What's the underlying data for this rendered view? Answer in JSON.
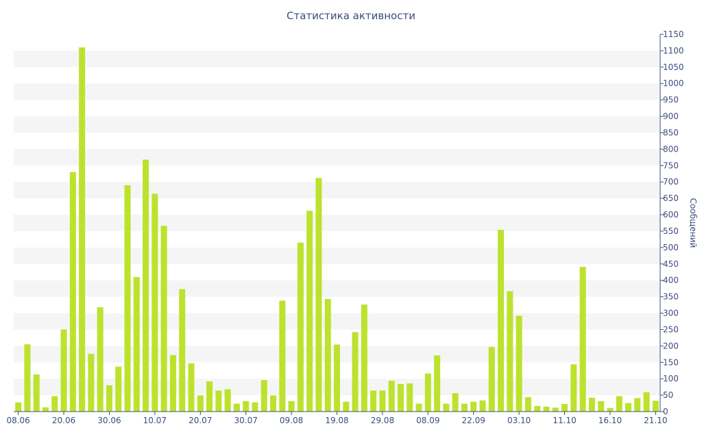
{
  "chart_data": {
    "type": "bar",
    "title": "Статистика активности",
    "ylabel": "Сообщений",
    "xlabel": "",
    "ylim": [
      0,
      1150
    ],
    "y_ticks": [
      0,
      50,
      100,
      150,
      200,
      250,
      300,
      350,
      400,
      450,
      500,
      550,
      600,
      650,
      700,
      750,
      800,
      850,
      900,
      950,
      1000,
      1050,
      1100,
      1150
    ],
    "y_axis_position": "right",
    "x_tick_labels": [
      {
        "index": 0,
        "label": "08.06"
      },
      {
        "index": 5,
        "label": "20.06"
      },
      {
        "index": 10,
        "label": "30.06"
      },
      {
        "index": 15,
        "label": "10.07"
      },
      {
        "index": 20,
        "label": "20.07"
      },
      {
        "index": 25,
        "label": "30.07"
      },
      {
        "index": 30,
        "label": "09.08"
      },
      {
        "index": 35,
        "label": "19.08"
      },
      {
        "index": 40,
        "label": "29.08"
      },
      {
        "index": 45,
        "label": "08.09"
      },
      {
        "index": 50,
        "label": "22.09"
      },
      {
        "index": 55,
        "label": "03.10"
      },
      {
        "index": 60,
        "label": "11.10"
      },
      {
        "index": 65,
        "label": "16.10"
      },
      {
        "index": 70,
        "label": "21.10"
      }
    ],
    "values": [
      28,
      205,
      113,
      13,
      47,
      250,
      730,
      1110,
      176,
      318,
      80,
      137,
      690,
      410,
      768,
      664,
      566,
      172,
      373,
      147,
      49,
      92,
      64,
      68,
      24,
      32,
      28,
      96,
      49,
      338,
      32,
      515,
      612,
      712,
      343,
      204,
      30,
      242,
      326,
      64,
      64,
      94,
      84,
      86,
      24,
      116,
      171,
      24,
      56,
      24,
      30,
      34,
      197,
      554,
      367,
      292,
      44,
      17,
      15,
      12,
      23,
      144,
      441,
      42,
      32,
      11,
      47,
      26,
      41,
      59,
      33
    ],
    "bar_color": "#bce22e",
    "grid": "horizontal bands",
    "legend": "none"
  }
}
